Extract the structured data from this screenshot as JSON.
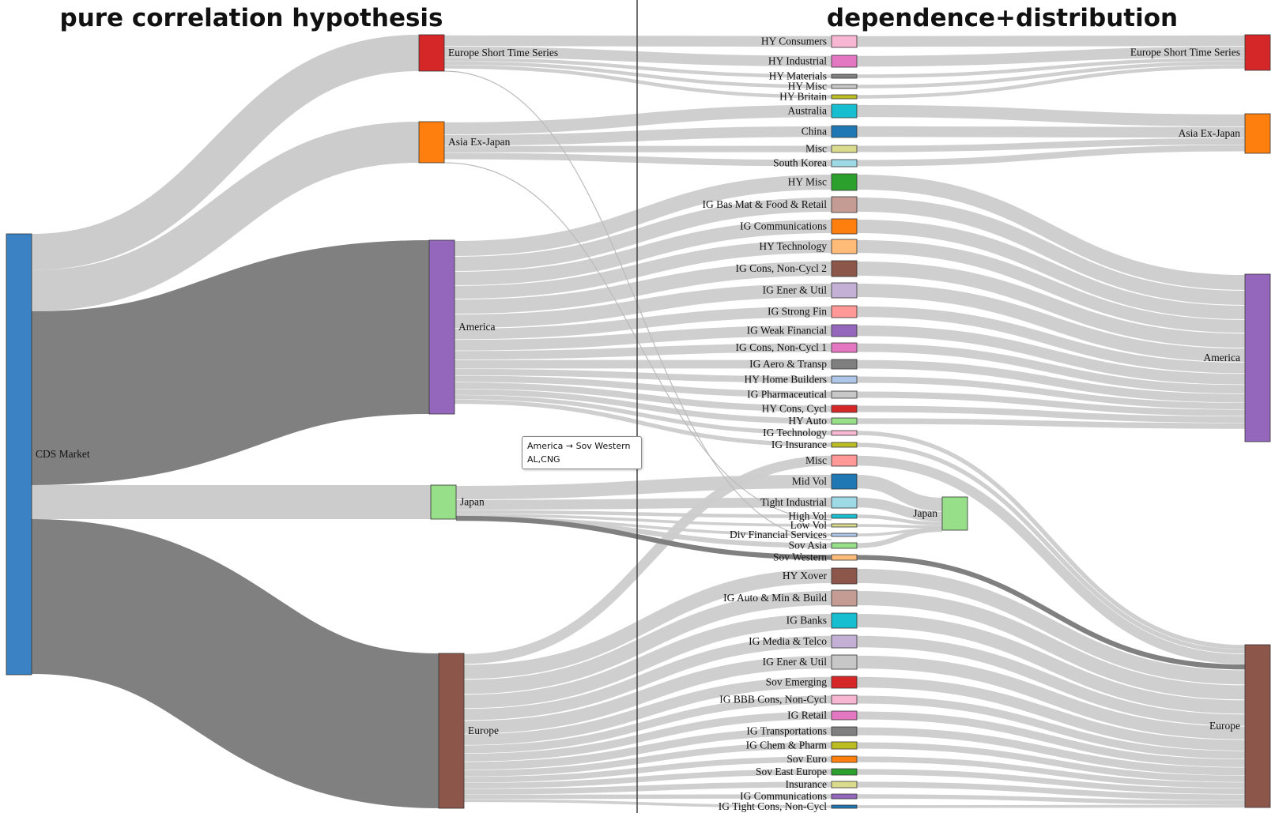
{
  "titles": {
    "left": "pure correlation hypothesis",
    "right": "dependence+distribution"
  },
  "tooltip": {
    "line1": "America → Sov Western",
    "line2": "AL,CNG"
  },
  "colors": {
    "link": "#cccccc",
    "link_highlight": "#808080",
    "divider": "#444444"
  },
  "root": {
    "name": "CDS Market",
    "color": "#3b82c4"
  },
  "regions": [
    {
      "name": "Europe Short Time Series",
      "color": "#d62728"
    },
    {
      "name": "Asia Ex-Japan",
      "color": "#ff7f0e"
    },
    {
      "name": "America",
      "color": "#9467bd"
    },
    {
      "name": "Japan",
      "color": "#98df8a"
    },
    {
      "name": "Europe",
      "color": "#8c564b"
    }
  ],
  "sectors": [
    {
      "name": "HY Consumers",
      "color": "#f7b6d2"
    },
    {
      "name": "HY Industrial",
      "color": "#e377c2"
    },
    {
      "name": "HY Materials",
      "color": "#7f7f7f"
    },
    {
      "name": "HY Misc",
      "color": "#c7c7c7"
    },
    {
      "name": "HY Britain",
      "color": "#bcbd22"
    },
    {
      "name": "Australia",
      "color": "#17becf"
    },
    {
      "name": "China",
      "color": "#1f77b4"
    },
    {
      "name": "Misc",
      "color": "#dbdb8d"
    },
    {
      "name": "South Korea",
      "color": "#9edae5"
    },
    {
      "name": "HY Misc",
      "color": "#2ca02c"
    },
    {
      "name": "IG Bas Mat & Food & Retail",
      "color": "#c49c94"
    },
    {
      "name": "IG Communications",
      "color": "#ff7f0e"
    },
    {
      "name": "HY Technology",
      "color": "#ffbb78"
    },
    {
      "name": "IG Cons, Non-Cycl 2",
      "color": "#8c564b"
    },
    {
      "name": "IG Ener & Util",
      "color": "#c5b0d5"
    },
    {
      "name": "IG Strong Fin",
      "color": "#ff9896"
    },
    {
      "name": "IG Weak Financial",
      "color": "#9467bd"
    },
    {
      "name": "IG Cons, Non-Cycl 1",
      "color": "#e377c2"
    },
    {
      "name": "IG Aero & Transp",
      "color": "#7f7f7f"
    },
    {
      "name": "HY Home Builders",
      "color": "#aec7e8"
    },
    {
      "name": "IG Pharmaceutical",
      "color": "#c7c7c7"
    },
    {
      "name": "HY Cons, Cycl",
      "color": "#d62728"
    },
    {
      "name": "HY Auto",
      "color": "#98df8a"
    },
    {
      "name": "IG Technology",
      "color": "#f7b6d2"
    },
    {
      "name": "IG Insurance",
      "color": "#bcbd22"
    },
    {
      "name": "Misc",
      "color": "#ff9896"
    },
    {
      "name": "Mid Vol",
      "color": "#1f77b4"
    },
    {
      "name": "Tight Industrial",
      "color": "#9edae5"
    },
    {
      "name": "High Vol",
      "color": "#17becf"
    },
    {
      "name": "Low Vol",
      "color": "#dbdb8d"
    },
    {
      "name": "Div Financial Services",
      "color": "#aec7e8"
    },
    {
      "name": "Sov Asia",
      "color": "#98df8a"
    },
    {
      "name": "Sov Western",
      "color": "#ffbb78"
    },
    {
      "name": "HY Xover",
      "color": "#8c564b"
    },
    {
      "name": "IG Auto & Min & Build",
      "color": "#c49c94"
    },
    {
      "name": "IG Banks",
      "color": "#17becf"
    },
    {
      "name": "IG Media & Telco",
      "color": "#c5b0d5"
    },
    {
      "name": "IG Ener & Util",
      "color": "#c7c7c7"
    },
    {
      "name": "Sov Emerging",
      "color": "#d62728"
    },
    {
      "name": "IG BBB Cons, Non-Cycl",
      "color": "#f7b6d2"
    },
    {
      "name": "IG Retail",
      "color": "#e377c2"
    },
    {
      "name": "IG Transportations",
      "color": "#7f7f7f"
    },
    {
      "name": "IG Chem & Pharm",
      "color": "#bcbd22"
    },
    {
      "name": "Sov Euro",
      "color": "#ff7f0e"
    },
    {
      "name": "Sov East Europe",
      "color": "#2ca02c"
    },
    {
      "name": "Insurance",
      "color": "#dbdb8d"
    },
    {
      "name": "IG Communications",
      "color": "#9467bd"
    },
    {
      "name": "IG Tight Cons, Non-Cycl",
      "color": "#1f77b4"
    }
  ],
  "regions_right": [
    {
      "name": "Europe Short Time Series",
      "color": "#d62728"
    },
    {
      "name": "Asia Ex-Japan",
      "color": "#ff7f0e"
    },
    {
      "name": "America",
      "color": "#9467bd"
    },
    {
      "name": "Japan",
      "color": "#98df8a"
    },
    {
      "name": "Europe",
      "color": "#8c564b"
    }
  ]
}
